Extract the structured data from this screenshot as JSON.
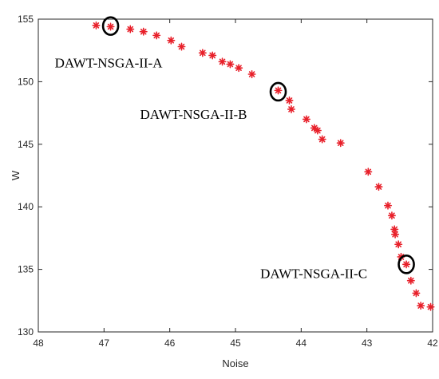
{
  "chart_data": {
    "type": "scatter",
    "xlabel": "Noise",
    "ylabel": "W",
    "xlim": [
      48,
      42
    ],
    "ylim": [
      130,
      155
    ],
    "x_reversed": true,
    "x_ticks": [
      48,
      47,
      46,
      45,
      44,
      43,
      42
    ],
    "y_ticks": [
      130,
      135,
      140,
      145,
      150,
      155
    ],
    "grid": false,
    "marker": "star",
    "marker_color": "#e8202a",
    "points": [
      [
        47.12,
        154.5
      ],
      [
        46.9,
        154.4
      ],
      [
        46.6,
        154.2
      ],
      [
        46.4,
        154.0
      ],
      [
        46.2,
        153.7
      ],
      [
        45.98,
        153.3
      ],
      [
        45.82,
        152.8
      ],
      [
        45.5,
        152.3
      ],
      [
        45.35,
        152.1
      ],
      [
        45.2,
        151.6
      ],
      [
        45.08,
        151.4
      ],
      [
        44.95,
        151.1
      ],
      [
        44.75,
        150.6
      ],
      [
        44.35,
        149.3
      ],
      [
        44.18,
        148.5
      ],
      [
        44.15,
        147.8
      ],
      [
        43.92,
        147.0
      ],
      [
        43.8,
        146.3
      ],
      [
        43.75,
        146.1
      ],
      [
        43.68,
        145.4
      ],
      [
        43.4,
        145.1
      ],
      [
        42.98,
        142.8
      ],
      [
        42.82,
        141.6
      ],
      [
        42.68,
        140.1
      ],
      [
        42.62,
        139.3
      ],
      [
        42.58,
        138.2
      ],
      [
        42.57,
        137.8
      ],
      [
        42.52,
        137.0
      ],
      [
        42.48,
        136.0
      ],
      [
        42.4,
        135.4
      ],
      [
        42.33,
        134.1
      ],
      [
        42.25,
        133.1
      ],
      [
        42.18,
        132.1
      ],
      [
        42.03,
        132.0
      ]
    ],
    "annotations": [
      {
        "label": "DAWT-NSGA-II-A",
        "x": 46.9,
        "y": 154.45
      },
      {
        "label": "DAWT-NSGA-II-B",
        "x": 44.35,
        "y": 149.2
      },
      {
        "label": "DAWT-NSGA-II-C",
        "x": 42.4,
        "y": 135.4
      }
    ]
  }
}
